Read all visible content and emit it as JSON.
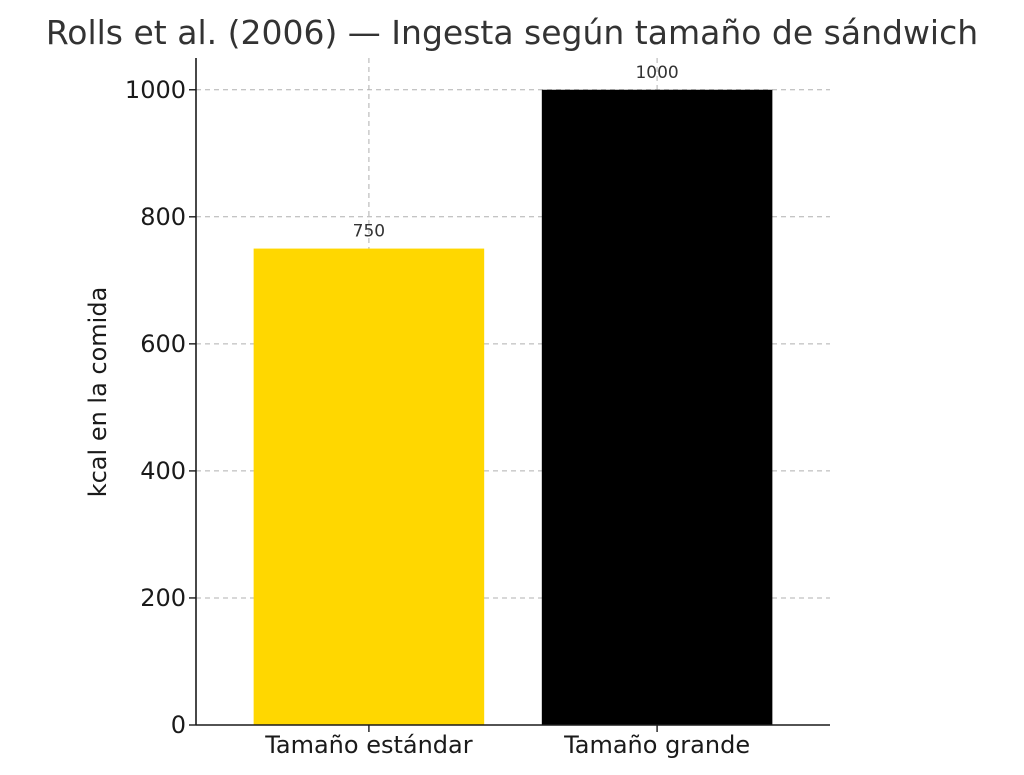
{
  "chart_data": {
    "type": "bar",
    "title": "Rolls et al. (2006) — Ingesta según tamaño de sándwich",
    "xlabel": "",
    "ylabel": "kcal en la comida",
    "categories": [
      "Tamaño estándar",
      "Tamaño grande"
    ],
    "values": [
      750,
      1000
    ],
    "data_labels": [
      "750",
      "1000"
    ],
    "colors": [
      "#FFD700",
      "#000000"
    ],
    "ylim": [
      0,
      1050
    ],
    "yticks": [
      0,
      200,
      400,
      600,
      800,
      1000
    ],
    "ytick_labels": [
      "0",
      "200",
      "400",
      "600",
      "800",
      "1000"
    ],
    "grid": true
  }
}
